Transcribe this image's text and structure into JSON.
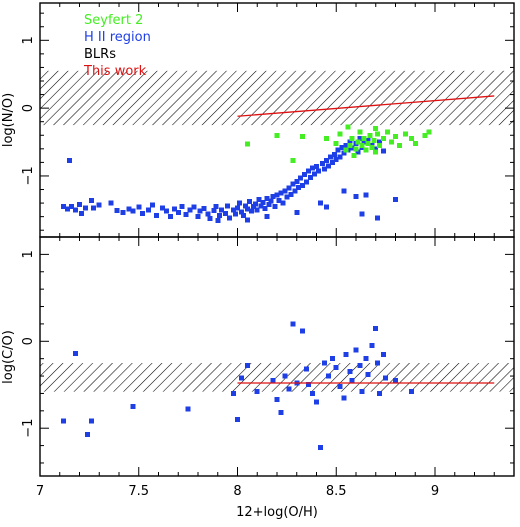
{
  "colors": {
    "seyfert2": "#44ee22",
    "hii": "#1f3fe6",
    "blr": "#000000",
    "thiswork": "#dd1111",
    "hatch": "#000000"
  },
  "chart_data": [
    {
      "type": "scatter",
      "panel": "top",
      "xlabel": "",
      "ylabel": "log(N/O)",
      "xlim": [
        7.0,
        9.4
      ],
      "ylim": [
        -1.9,
        1.55
      ],
      "yticks": [
        -1,
        0,
        1
      ],
      "ytick_labels": [
        "−1",
        "0",
        "1"
      ],
      "legend": {
        "placement": "top-left",
        "entries": [
          {
            "label": "Seyfert 2",
            "color_key": "seyfert2"
          },
          {
            "label": "H II region",
            "color_key": "hii"
          },
          {
            "label": "BLRs",
            "color_key": "blr"
          },
          {
            "label": "This work",
            "color_key": "thiswork"
          }
        ]
      },
      "hatched_band": {
        "y0": -0.25,
        "y1": 0.55
      },
      "line": {
        "name": "This work",
        "color_key": "thiswork",
        "x": [
          8.0,
          9.3
        ],
        "y": [
          -0.12,
          0.18
        ]
      },
      "series": [
        {
          "name": "H II region",
          "color_key": "hii",
          "points": [
            [
              7.12,
              -1.45
            ],
            [
              7.14,
              -1.49
            ],
            [
              7.15,
              -0.77
            ],
            [
              7.16,
              -1.45
            ],
            [
              7.18,
              -1.5
            ],
            [
              7.2,
              -1.42
            ],
            [
              7.21,
              -1.55
            ],
            [
              7.23,
              -1.47
            ],
            [
              7.26,
              -1.36
            ],
            [
              7.27,
              -1.47
            ],
            [
              7.3,
              -1.43
            ],
            [
              7.36,
              -1.4
            ],
            [
              7.39,
              -1.51
            ],
            [
              7.42,
              -1.54
            ],
            [
              7.45,
              -1.49
            ],
            [
              7.47,
              -1.52
            ],
            [
              7.5,
              -1.46
            ],
            [
              7.52,
              -1.55
            ],
            [
              7.55,
              -1.5
            ],
            [
              7.57,
              -1.43
            ],
            [
              7.59,
              -1.58
            ],
            [
              7.62,
              -1.47
            ],
            [
              7.64,
              -1.52
            ],
            [
              7.66,
              -1.6
            ],
            [
              7.68,
              -1.49
            ],
            [
              7.7,
              -1.54
            ],
            [
              7.72,
              -1.45
            ],
            [
              7.74,
              -1.57
            ],
            [
              7.76,
              -1.5
            ],
            [
              7.78,
              -1.46
            ],
            [
              7.8,
              -1.6
            ],
            [
              7.81,
              -1.52
            ],
            [
              7.83,
              -1.48
            ],
            [
              7.85,
              -1.56
            ],
            [
              7.86,
              -1.63
            ],
            [
              7.88,
              -1.51
            ],
            [
              7.89,
              -1.45
            ],
            [
              7.91,
              -1.58
            ],
            [
              7.92,
              -1.5
            ],
            [
              7.94,
              -1.55
            ],
            [
              7.95,
              -1.44
            ],
            [
              7.96,
              -1.62
            ],
            [
              7.98,
              -1.5
            ],
            [
              7.99,
              -1.56
            ],
            [
              8.0,
              -1.47
            ],
            [
              8.01,
              -1.4
            ],
            [
              8.02,
              -1.53
            ],
            [
              8.03,
              -1.58
            ],
            [
              8.04,
              -1.44
            ],
            [
              8.05,
              -1.49
            ],
            [
              8.06,
              -1.38
            ],
            [
              8.07,
              -1.52
            ],
            [
              8.08,
              -1.45
            ],
            [
              8.09,
              -1.41
            ],
            [
              8.1,
              -1.5
            ],
            [
              8.11,
              -1.35
            ],
            [
              8.12,
              -1.44
            ],
            [
              8.13,
              -1.39
            ],
            [
              8.14,
              -1.48
            ],
            [
              8.15,
              -1.33
            ],
            [
              8.16,
              -1.42
            ],
            [
              8.17,
              -1.37
            ],
            [
              8.18,
              -1.3
            ],
            [
              8.19,
              -1.45
            ],
            [
              8.2,
              -1.28
            ],
            [
              8.21,
              -1.36
            ],
            [
              8.22,
              -1.25
            ],
            [
              8.23,
              -1.4
            ],
            [
              8.24,
              -1.22
            ],
            [
              8.25,
              -1.31
            ],
            [
              8.26,
              -1.18
            ],
            [
              8.27,
              -1.27
            ],
            [
              8.28,
              -1.12
            ],
            [
              8.29,
              -1.22
            ],
            [
              8.3,
              -1.08
            ],
            [
              8.31,
              -1.17
            ],
            [
              8.32,
              -1.03
            ],
            [
              8.33,
              -1.14
            ],
            [
              8.34,
              -0.98
            ],
            [
              8.35,
              -1.09
            ],
            [
              8.36,
              -0.93
            ],
            [
              8.37,
              -1.02
            ],
            [
              8.38,
              -0.88
            ],
            [
              8.39,
              -0.97
            ],
            [
              8.4,
              -0.86
            ],
            [
              8.41,
              -0.93
            ],
            [
              8.42,
              -1.4
            ],
            [
              8.43,
              -0.82
            ],
            [
              8.44,
              -0.9
            ],
            [
              8.45,
              -0.77
            ],
            [
              8.46,
              -0.85
            ],
            [
              8.47,
              -0.72
            ],
            [
              8.48,
              -0.8
            ],
            [
              8.49,
              -0.68
            ],
            [
              8.5,
              -0.76
            ],
            [
              8.51,
              -0.62
            ],
            [
              8.52,
              -0.72
            ],
            [
              8.53,
              -0.58
            ],
            [
              8.54,
              -0.66
            ],
            [
              8.55,
              -0.55
            ],
            [
              8.56,
              -0.62
            ],
            [
              8.57,
              -0.5
            ],
            [
              8.58,
              -0.59
            ],
            [
              8.6,
              -0.52
            ],
            [
              8.61,
              -0.65
            ],
            [
              8.62,
              -0.45
            ],
            [
              8.63,
              -0.58
            ],
            [
              8.64,
              -0.5
            ],
            [
              8.65,
              -0.62
            ],
            [
              8.66,
              -0.48
            ],
            [
              8.68,
              -0.55
            ],
            [
              8.7,
              -0.6
            ],
            [
              8.72,
              -0.5
            ],
            [
              8.74,
              -0.63
            ],
            [
              8.54,
              -1.22
            ],
            [
              8.6,
              -1.3
            ],
            [
              8.63,
              -1.56
            ],
            [
              8.65,
              -1.28
            ],
            [
              8.8,
              -1.35
            ],
            [
              8.71,
              -1.62
            ],
            [
              8.05,
              -1.65
            ],
            [
              7.9,
              -1.66
            ],
            [
              8.45,
              -1.46
            ],
            [
              8.15,
              -1.6
            ],
            [
              8.3,
              -1.54
            ]
          ]
        },
        {
          "name": "Seyfert 2",
          "color_key": "seyfert2",
          "points": [
            [
              8.05,
              -0.53
            ],
            [
              8.2,
              -0.4
            ],
            [
              8.28,
              -0.77
            ],
            [
              8.33,
              -0.42
            ],
            [
              8.45,
              -0.45
            ],
            [
              8.5,
              -0.52
            ],
            [
              8.52,
              -0.38
            ],
            [
              8.55,
              -0.62
            ],
            [
              8.57,
              -0.55
            ],
            [
              8.58,
              -0.45
            ],
            [
              8.59,
              -0.7
            ],
            [
              8.6,
              -0.6
            ],
            [
              8.61,
              -0.5
            ],
            [
              8.62,
              -0.35
            ],
            [
              8.63,
              -0.55
            ],
            [
              8.64,
              -0.45
            ],
            [
              8.65,
              -0.62
            ],
            [
              8.66,
              -0.52
            ],
            [
              8.67,
              -0.4
            ],
            [
              8.68,
              -0.58
            ],
            [
              8.69,
              -0.48
            ],
            [
              8.7,
              -0.65
            ],
            [
              8.71,
              -0.38
            ],
            [
              8.72,
              -0.55
            ],
            [
              8.74,
              -0.45
            ],
            [
              8.76,
              -0.35
            ],
            [
              8.78,
              -0.5
            ],
            [
              8.8,
              -0.42
            ],
            [
              8.82,
              -0.55
            ],
            [
              8.85,
              -0.38
            ],
            [
              8.88,
              -0.45
            ],
            [
              8.9,
              -0.52
            ],
            [
              8.95,
              -0.4
            ],
            [
              8.97,
              -0.35
            ],
            [
              8.56,
              -0.28
            ],
            [
              8.7,
              -0.3
            ]
          ]
        }
      ]
    },
    {
      "type": "scatter",
      "panel": "bottom",
      "xlabel": "12+log(O/H)",
      "ylabel": "log(C/O)",
      "xlim": [
        7.0,
        9.4
      ],
      "ylim": [
        -1.55,
        1.2
      ],
      "yticks": [
        -1,
        0,
        1
      ],
      "ytick_labels": [
        "−1",
        "0",
        "1"
      ],
      "xticks": [
        7,
        7.5,
        8,
        8.5,
        9
      ],
      "xtick_labels": [
        "7",
        "7.5",
        "8",
        "8.5",
        "9"
      ],
      "hatched_band": {
        "y0": -0.58,
        "y1": -0.25
      },
      "line": {
        "name": "This work",
        "color_key": "thiswork",
        "x": [
          8.0,
          9.3
        ],
        "y": [
          -0.48,
          -0.48
        ]
      },
      "series": [
        {
          "name": "H II region",
          "color_key": "hii",
          "points": [
            [
              7.12,
              -0.92
            ],
            [
              7.18,
              -0.14
            ],
            [
              7.24,
              -1.07
            ],
            [
              7.26,
              -0.92
            ],
            [
              7.47,
              -0.75
            ],
            [
              7.75,
              -0.78
            ],
            [
              7.98,
              -0.6
            ],
            [
              8.0,
              -0.9
            ],
            [
              8.02,
              -0.42
            ],
            [
              8.05,
              -0.28
            ],
            [
              8.1,
              -0.58
            ],
            [
              8.18,
              -0.45
            ],
            [
              8.2,
              -0.67
            ],
            [
              8.22,
              -0.82
            ],
            [
              8.24,
              -0.4
            ],
            [
              8.26,
              -0.55
            ],
            [
              8.28,
              0.2
            ],
            [
              8.3,
              -0.48
            ],
            [
              8.33,
              0.12
            ],
            [
              8.35,
              -0.32
            ],
            [
              8.36,
              -0.5
            ],
            [
              8.38,
              -0.6
            ],
            [
              8.4,
              -0.7
            ],
            [
              8.42,
              -1.22
            ],
            [
              8.44,
              -0.25
            ],
            [
              8.46,
              -0.4
            ],
            [
              8.48,
              -0.2
            ],
            [
              8.5,
              -0.3
            ],
            [
              8.52,
              -0.52
            ],
            [
              8.54,
              -0.65
            ],
            [
              8.55,
              -0.15
            ],
            [
              8.57,
              -0.35
            ],
            [
              8.58,
              -0.45
            ],
            [
              8.6,
              -0.1
            ],
            [
              8.62,
              -0.28
            ],
            [
              8.63,
              -0.58
            ],
            [
              8.65,
              -0.2
            ],
            [
              8.66,
              -0.38
            ],
            [
              8.68,
              -0.05
            ],
            [
              8.7,
              0.15
            ],
            [
              8.71,
              -0.25
            ],
            [
              8.72,
              -0.6
            ],
            [
              8.74,
              -0.15
            ],
            [
              8.75,
              -0.42
            ],
            [
              8.8,
              -0.45
            ],
            [
              8.88,
              -0.58
            ]
          ]
        }
      ]
    }
  ]
}
